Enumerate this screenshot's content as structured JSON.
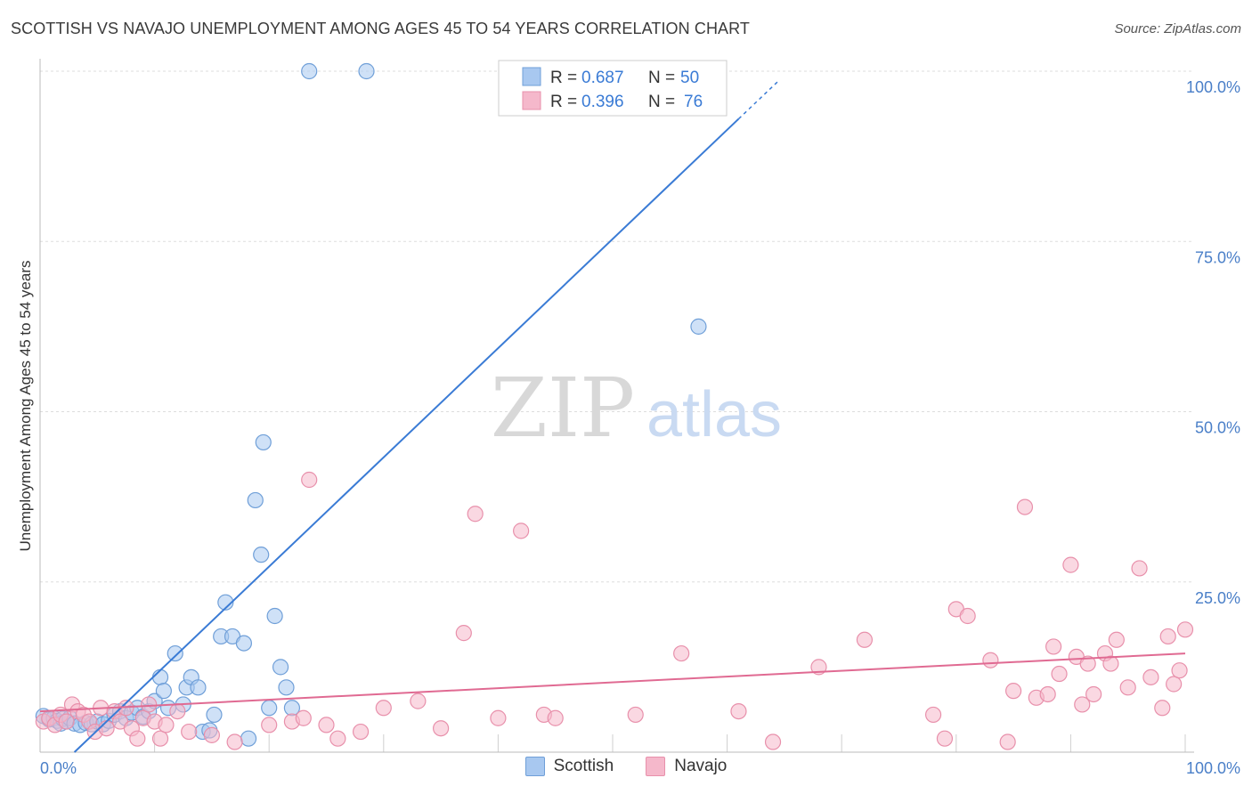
{
  "title": "SCOTTISH VS NAVAJO UNEMPLOYMENT AMONG AGES 45 TO 54 YEARS CORRELATION CHART",
  "source": "Source: ZipAtlas.com",
  "watermark": {
    "zip": "ZIP",
    "atlas": "atlas"
  },
  "legend_bottom": [
    {
      "label": "Scottish",
      "color": "#a8c8f0"
    },
    {
      "label": "Navajo",
      "color": "#f5b8cb"
    }
  ],
  "stats_box": [
    {
      "r_label": "R = ",
      "r_value": "0.687",
      "n_label": "N = ",
      "n_value": "50"
    },
    {
      "r_label": "R = ",
      "r_value": "0.396",
      "n_label": "N = ",
      "n_value": "76"
    }
  ],
  "chart_data": {
    "type": "scatter",
    "title": "SCOTTISH VS NAVAJO UNEMPLOYMENT AMONG AGES 45 TO 54 YEARS CORRELATION CHART",
    "xlabel": "",
    "ylabel": "Unemployment Among Ages 45 to 54 years",
    "xlim": [
      0,
      100
    ],
    "ylim": [
      0,
      100
    ],
    "x_tick_labels": [
      "0.0%",
      "100.0%"
    ],
    "y_ticks": [
      25,
      50,
      75,
      100
    ],
    "y_tick_labels": [
      "25.0%",
      "50.0%",
      "75.0%",
      "100.0%"
    ],
    "grid": true,
    "colors": {
      "scottish_fill": "#a8c8f0",
      "scottish_stroke": "#6f9fd8",
      "scottish_line": "#3a7bd5",
      "navajo_fill": "#f5b8cb",
      "navajo_stroke": "#e890ab",
      "navajo_line": "#e06a92",
      "axis_text": "#4a7fc8",
      "grid": "#dddddd"
    },
    "series": [
      {
        "name": "Scottish",
        "trend": {
          "x1": 3,
          "y1": 0,
          "x2": 61,
          "y2": 93
        },
        "points": [
          [
            0.3,
            5.3
          ],
          [
            0.8,
            4.8
          ],
          [
            1.2,
            5.0
          ],
          [
            1.5,
            4.6
          ],
          [
            1.8,
            4.2
          ],
          [
            2.0,
            4.9
          ],
          [
            2.3,
            4.5
          ],
          [
            2.6,
            5.0
          ],
          [
            3.0,
            4.2
          ],
          [
            3.5,
            4.0
          ],
          [
            4.0,
            4.3
          ],
          [
            4.5,
            4.1
          ],
          [
            5.0,
            4.5
          ],
          [
            5.5,
            4.1
          ],
          [
            6.0,
            4.6
          ],
          [
            6.5,
            5.5
          ],
          [
            7.0,
            6.0
          ],
          [
            7.5,
            5.0
          ],
          [
            8.0,
            5.8
          ],
          [
            8.5,
            6.5
          ],
          [
            9.0,
            5.2
          ],
          [
            9.5,
            6.0
          ],
          [
            10.0,
            7.5
          ],
          [
            10.5,
            11.0
          ],
          [
            10.8,
            9.0
          ],
          [
            11.2,
            6.5
          ],
          [
            11.8,
            14.5
          ],
          [
            12.5,
            7.0
          ],
          [
            12.8,
            9.5
          ],
          [
            13.2,
            11.0
          ],
          [
            13.8,
            9.5
          ],
          [
            14.2,
            3.0
          ],
          [
            14.8,
            3.2
          ],
          [
            15.2,
            5.5
          ],
          [
            15.8,
            17.0
          ],
          [
            16.2,
            22.0
          ],
          [
            16.8,
            17.0
          ],
          [
            17.8,
            16.0
          ],
          [
            18.2,
            2.0
          ],
          [
            18.8,
            37.0
          ],
          [
            19.3,
            29.0
          ],
          [
            19.5,
            45.5
          ],
          [
            20.0,
            6.5
          ],
          [
            20.5,
            20.0
          ],
          [
            21.0,
            12.5
          ],
          [
            21.5,
            9.5
          ],
          [
            22.0,
            6.5
          ],
          [
            23.5,
            100
          ],
          [
            28.5,
            100
          ],
          [
            57.5,
            62.5
          ]
        ]
      },
      {
        "name": "Navajo",
        "trend": {
          "x1": 0,
          "y1": 6.0,
          "x2": 100,
          "y2": 14.5
        },
        "points": [
          [
            0.3,
            4.5
          ],
          [
            0.8,
            5.0
          ],
          [
            1.3,
            4.0
          ],
          [
            1.8,
            5.5
          ],
          [
            2.3,
            4.5
          ],
          [
            2.8,
            7.0
          ],
          [
            3.3,
            6.0
          ],
          [
            3.8,
            5.5
          ],
          [
            4.3,
            4.5
          ],
          [
            4.8,
            3.0
          ],
          [
            5.3,
            6.5
          ],
          [
            5.8,
            3.5
          ],
          [
            6.5,
            6.0
          ],
          [
            7.0,
            4.5
          ],
          [
            7.5,
            6.5
          ],
          [
            8.0,
            3.5
          ],
          [
            8.5,
            2.0
          ],
          [
            9.0,
            5.0
          ],
          [
            9.5,
            7.0
          ],
          [
            10.0,
            4.5
          ],
          [
            10.5,
            2.0
          ],
          [
            11.0,
            4.0
          ],
          [
            12.0,
            6.0
          ],
          [
            13.0,
            3.0
          ],
          [
            15.0,
            2.5
          ],
          [
            17.0,
            1.5
          ],
          [
            20.0,
            4.0
          ],
          [
            22.0,
            4.5
          ],
          [
            23.0,
            5.0
          ],
          [
            23.5,
            40.0
          ],
          [
            25.0,
            4.0
          ],
          [
            26.0,
            2.0
          ],
          [
            28.0,
            3.0
          ],
          [
            30.0,
            6.5
          ],
          [
            33.0,
            7.5
          ],
          [
            35.0,
            3.5
          ],
          [
            37.0,
            17.5
          ],
          [
            38.0,
            35.0
          ],
          [
            40.0,
            5.0
          ],
          [
            42.0,
            32.5
          ],
          [
            44.0,
            5.5
          ],
          [
            45.0,
            5.0
          ],
          [
            52.0,
            5.5
          ],
          [
            56.0,
            14.5
          ],
          [
            61.0,
            6.0
          ],
          [
            64.0,
            1.5
          ],
          [
            68.0,
            12.5
          ],
          [
            72.0,
            16.5
          ],
          [
            78.0,
            5.5
          ],
          [
            79.0,
            2.0
          ],
          [
            80.0,
            21.0
          ],
          [
            81.0,
            20.0
          ],
          [
            83.0,
            13.5
          ],
          [
            84.5,
            1.5
          ],
          [
            85.0,
            9.0
          ],
          [
            86.0,
            36.0
          ],
          [
            87.0,
            8.0
          ],
          [
            88.0,
            8.5
          ],
          [
            88.5,
            15.5
          ],
          [
            89.0,
            11.5
          ],
          [
            90.0,
            27.5
          ],
          [
            90.5,
            14.0
          ],
          [
            91.0,
            7.0
          ],
          [
            91.5,
            13.0
          ],
          [
            92.0,
            8.5
          ],
          [
            93.0,
            14.5
          ],
          [
            93.5,
            13.0
          ],
          [
            94.0,
            16.5
          ],
          [
            95.0,
            9.5
          ],
          [
            96.0,
            27.0
          ],
          [
            97.0,
            11.0
          ],
          [
            98.0,
            6.5
          ],
          [
            98.5,
            17.0
          ],
          [
            99.0,
            10.0
          ],
          [
            99.5,
            12.0
          ],
          [
            100.0,
            18.0
          ]
        ]
      }
    ]
  }
}
